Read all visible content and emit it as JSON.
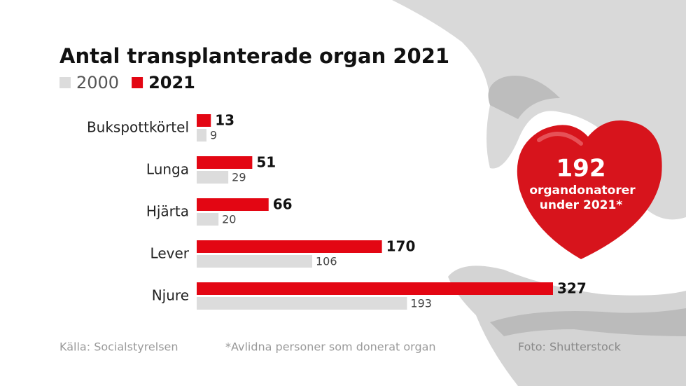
{
  "chart_data": {
    "type": "bar",
    "orientation": "horizontal",
    "title": "Antal transplanterade organ 2021",
    "categories": [
      "Bukspottkörtel",
      "Lunga",
      "Hjärta",
      "Lever",
      "Njure"
    ],
    "series": [
      {
        "name": "2000",
        "color": "#dcdcdc",
        "values": [
          9,
          29,
          20,
          106,
          193
        ]
      },
      {
        "name": "2021",
        "color": "#e30613",
        "values": [
          13,
          51,
          66,
          170,
          327
        ]
      }
    ],
    "annotation": {
      "number": "192",
      "line1": "organdonatorer",
      "line2": "under 2021*"
    },
    "source": "Källa: Socialstyrelsen",
    "footnote": "*Avlidna personer som donerat organ",
    "credit": "Foto: Shutterstock"
  }
}
